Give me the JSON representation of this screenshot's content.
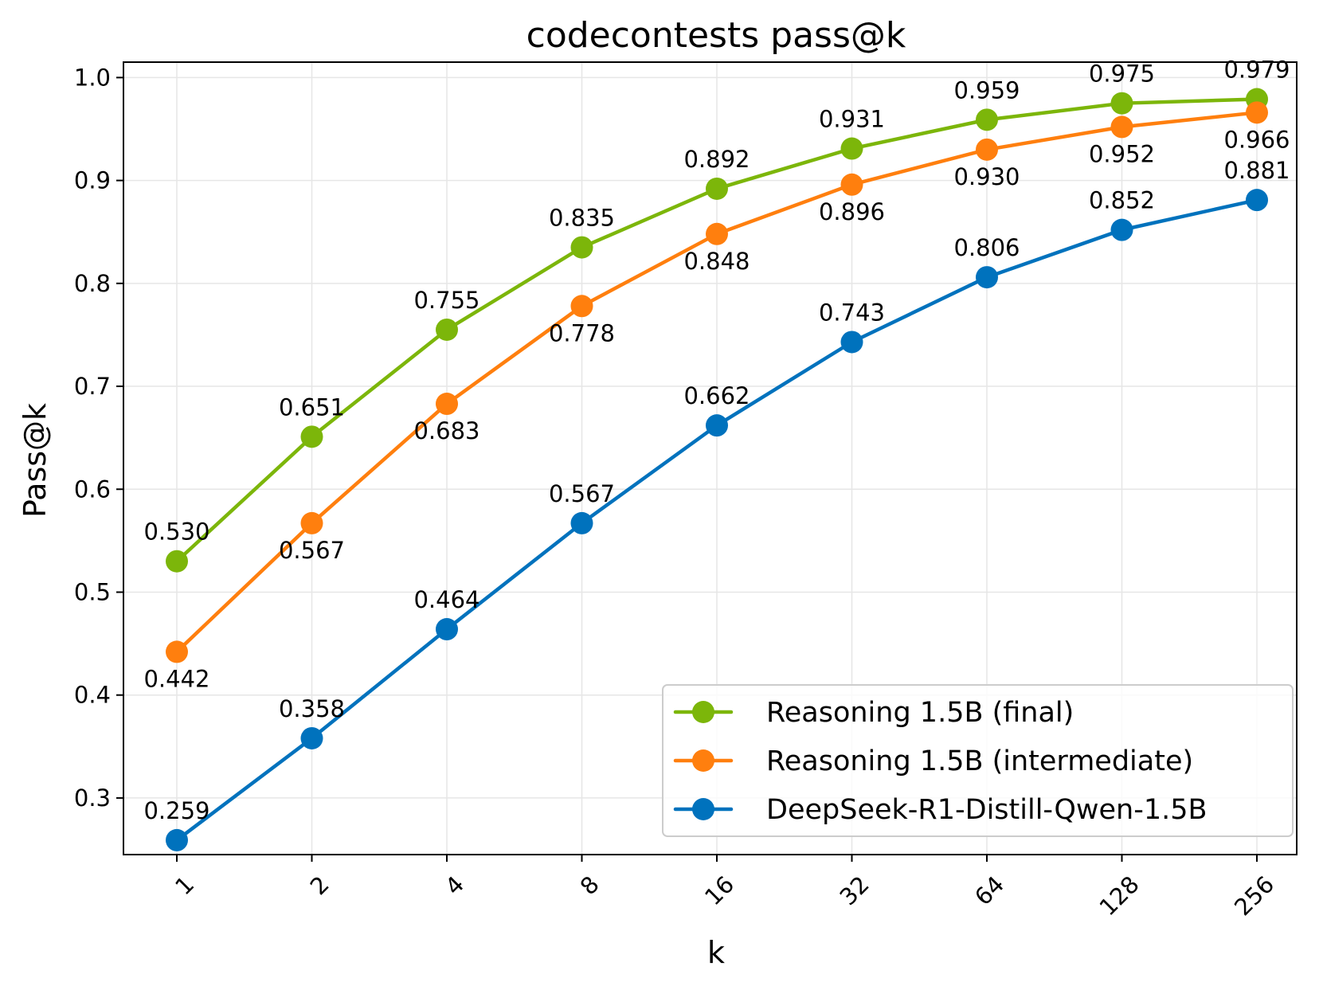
{
  "chart_data": {
    "type": "line",
    "title": "codecontests pass@k",
    "xlabel": "k",
    "ylabel": "Pass@k",
    "categories": [
      "1",
      "2",
      "4",
      "8",
      "16",
      "32",
      "64",
      "128",
      "256"
    ],
    "x_scale": "log2",
    "ylim": [
      0.245,
      1.015
    ],
    "yticks": [
      "0.3",
      "0.4",
      "0.5",
      "0.6",
      "0.7",
      "0.8",
      "0.9",
      "1.0"
    ],
    "grid": true,
    "legend_position": "lower-right",
    "series": [
      {
        "name": "Reasoning 1.5B (final)",
        "color": "#7cb60a",
        "label_position": "above",
        "values": [
          0.53,
          0.651,
          0.755,
          0.835,
          0.892,
          0.931,
          0.959,
          0.975,
          0.979
        ],
        "labels": [
          "0.530",
          "0.651",
          "0.755",
          "0.835",
          "0.892",
          "0.931",
          "0.959",
          "0.975",
          "0.979"
        ]
      },
      {
        "name": "Reasoning 1.5B (intermediate)",
        "color": "#ff7f0e",
        "label_position": "below",
        "values": [
          0.442,
          0.567,
          0.683,
          0.778,
          0.848,
          0.896,
          0.93,
          0.952,
          0.966
        ],
        "labels": [
          "0.442",
          "0.567",
          "0.683",
          "0.778",
          "0.848",
          "0.896",
          "0.930",
          "0.952",
          "0.966"
        ]
      },
      {
        "name": "DeepSeek-R1-Distill-Qwen-1.5B",
        "color": "#0072bd",
        "label_position": "above",
        "values": [
          0.259,
          0.358,
          0.464,
          0.567,
          0.662,
          0.743,
          0.806,
          0.852,
          0.881
        ],
        "labels": [
          "0.259",
          "0.358",
          "0.464",
          "0.567",
          "0.662",
          "0.743",
          "0.806",
          "0.852",
          "0.881"
        ]
      }
    ]
  }
}
